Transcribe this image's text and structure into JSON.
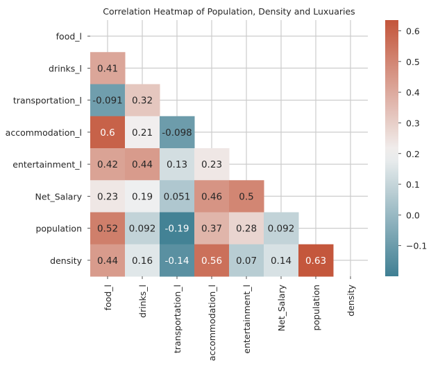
{
  "chart_data": {
    "type": "heatmap",
    "title": "Correlation Heatmap of Population, Density and Luxuaries",
    "row_labels": [
      "food_l",
      "drinks_l",
      "transportation_l",
      "accommodation_l",
      "entertainment_l",
      "Net_Salary",
      "population",
      "density"
    ],
    "col_labels": [
      "food_l",
      "drinks_l",
      "transportation_l",
      "accommodation_l",
      "entertainment_l",
      "Net_Salary",
      "population",
      "density"
    ],
    "mask": "upper-triangle-including-diagonal",
    "cells": [
      {
        "row": 1,
        "col": 0,
        "value": 0.41,
        "label": "0.41"
      },
      {
        "row": 2,
        "col": 0,
        "value": -0.091,
        "label": "-0.091"
      },
      {
        "row": 2,
        "col": 1,
        "value": 0.32,
        "label": "0.32"
      },
      {
        "row": 3,
        "col": 0,
        "value": 0.6,
        "label": "0.6"
      },
      {
        "row": 3,
        "col": 1,
        "value": 0.21,
        "label": "0.21"
      },
      {
        "row": 3,
        "col": 2,
        "value": -0.098,
        "label": "-0.098"
      },
      {
        "row": 4,
        "col": 0,
        "value": 0.42,
        "label": "0.42"
      },
      {
        "row": 4,
        "col": 1,
        "value": 0.44,
        "label": "0.44"
      },
      {
        "row": 4,
        "col": 2,
        "value": 0.13,
        "label": "0.13"
      },
      {
        "row": 4,
        "col": 3,
        "value": 0.23,
        "label": "0.23"
      },
      {
        "row": 5,
        "col": 0,
        "value": 0.23,
        "label": "0.23"
      },
      {
        "row": 5,
        "col": 1,
        "value": 0.19,
        "label": "0.19"
      },
      {
        "row": 5,
        "col": 2,
        "value": 0.051,
        "label": "0.051"
      },
      {
        "row": 5,
        "col": 3,
        "value": 0.46,
        "label": "0.46"
      },
      {
        "row": 5,
        "col": 4,
        "value": 0.5,
        "label": "0.5"
      },
      {
        "row": 6,
        "col": 0,
        "value": 0.52,
        "label": "0.52"
      },
      {
        "row": 6,
        "col": 1,
        "value": 0.092,
        "label": "0.092"
      },
      {
        "row": 6,
        "col": 2,
        "value": -0.19,
        "label": "-0.19"
      },
      {
        "row": 6,
        "col": 3,
        "value": 0.37,
        "label": "0.37"
      },
      {
        "row": 6,
        "col": 4,
        "value": 0.28,
        "label": "0.28"
      },
      {
        "row": 6,
        "col": 5,
        "value": 0.092,
        "label": "0.092"
      },
      {
        "row": 7,
        "col": 0,
        "value": 0.44,
        "label": "0.44"
      },
      {
        "row": 7,
        "col": 1,
        "value": 0.16,
        "label": "0.16"
      },
      {
        "row": 7,
        "col": 2,
        "value": -0.14,
        "label": "-0.14"
      },
      {
        "row": 7,
        "col": 3,
        "value": 0.56,
        "label": "0.56"
      },
      {
        "row": 7,
        "col": 4,
        "value": 0.07,
        "label": "0.07"
      },
      {
        "row": 7,
        "col": 5,
        "value": 0.14,
        "label": "0.14"
      },
      {
        "row": 7,
        "col": 6,
        "value": 0.63,
        "label": "0.63"
      }
    ],
    "colorbar": {
      "vmin": -0.2,
      "vmax": 0.635,
      "center": 0.2,
      "ticks": [
        {
          "value": -0.1,
          "label": "−0.1"
        },
        {
          "value": 0.0,
          "label": "0.0"
        },
        {
          "value": 0.1,
          "label": "0.1"
        },
        {
          "value": 0.2,
          "label": "0.2"
        },
        {
          "value": 0.3,
          "label": "0.3"
        },
        {
          "value": 0.4,
          "label": "0.4"
        },
        {
          "value": 0.5,
          "label": "0.5"
        },
        {
          "value": 0.6,
          "label": "0.6"
        }
      ]
    },
    "colormap": {
      "low": "#3f7f93",
      "mid": "#f2f2f2",
      "high": "#c3553a"
    },
    "grid": true,
    "grid_color": "#cccccc"
  }
}
